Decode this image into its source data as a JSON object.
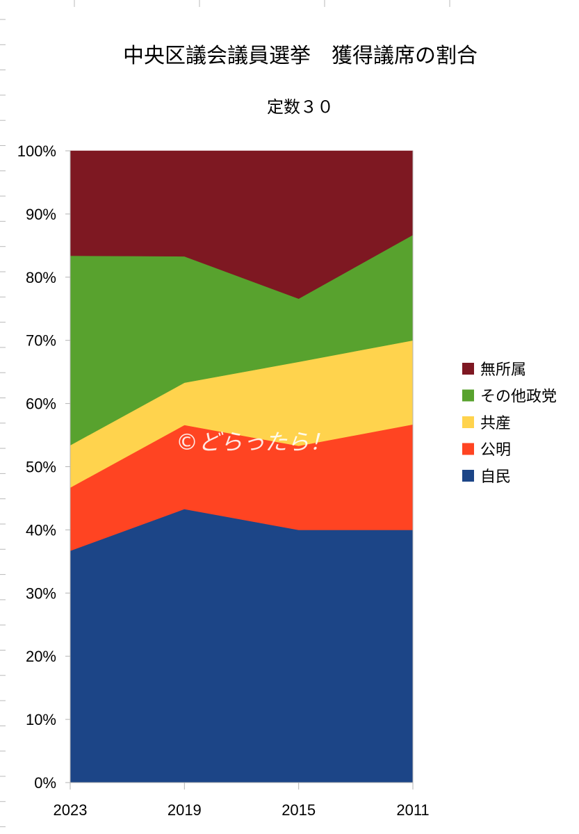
{
  "chart_data": {
    "type": "area",
    "stacked": true,
    "percent": true,
    "title": "中央区議会議員選挙　獲得議席の割合",
    "subtitle": "定数３０",
    "categories": [
      "2023",
      "2019",
      "2015",
      "2011"
    ],
    "ylim": [
      0,
      100
    ],
    "y_ticks": [
      "0%",
      "10%",
      "20%",
      "30%",
      "40%",
      "50%",
      "60%",
      "70%",
      "80%",
      "90%",
      "100%"
    ],
    "legend_position": "right",
    "series": [
      {
        "name": "自民",
        "color": "#1c4587",
        "values": [
          36.7,
          43.3,
          40.0,
          40.0
        ]
      },
      {
        "name": "公明",
        "color": "#ff4422",
        "values": [
          10.0,
          13.3,
          13.3,
          16.7
        ]
      },
      {
        "name": "共産",
        "color": "#ffd34d",
        "values": [
          6.7,
          6.7,
          13.3,
          13.3
        ]
      },
      {
        "name": "その他政党",
        "color": "#58a22e",
        "values": [
          30.0,
          20.0,
          10.0,
          16.7
        ]
      },
      {
        "name": "無所属",
        "color": "#7e1822",
        "values": [
          16.6,
          16.7,
          23.4,
          13.3
        ]
      }
    ],
    "watermark": "©どらったら！"
  }
}
